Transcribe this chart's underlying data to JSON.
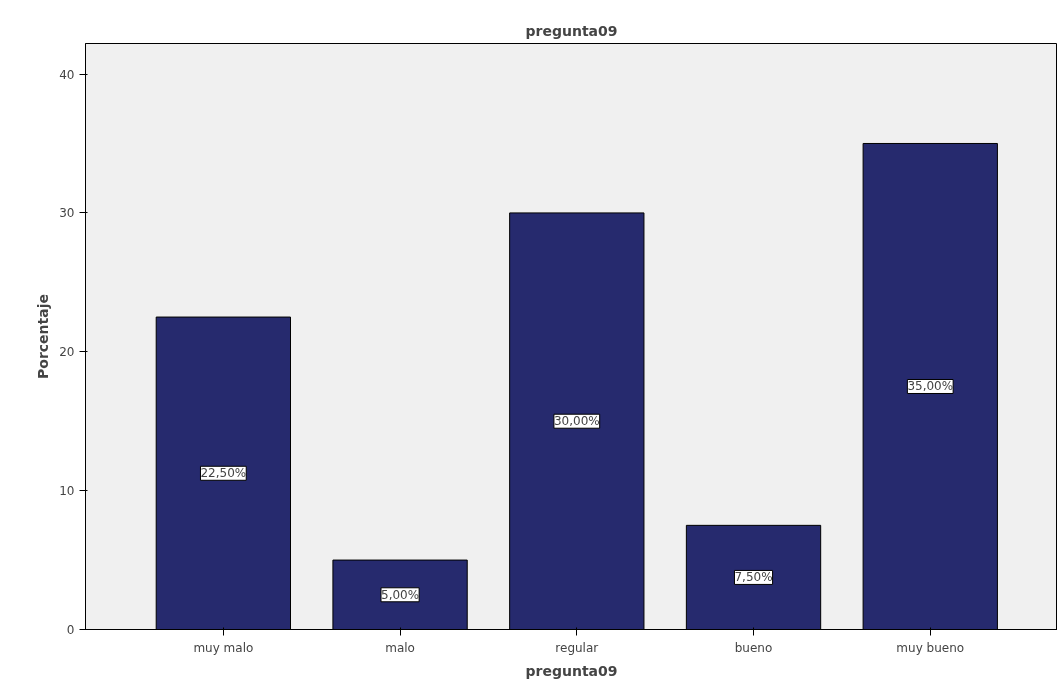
{
  "chart_data": {
    "type": "bar",
    "title": "pregunta09",
    "xlabel": "pregunta09",
    "ylabel": "Porcentaje",
    "categories": [
      "muy malo",
      "malo",
      "regular",
      "bueno",
      "muy bueno"
    ],
    "values": [
      22.5,
      5,
      30,
      7.5,
      35
    ],
    "value_labels": [
      "22,50%",
      "5,00%",
      "30,00%",
      "7,50%",
      "35,00%"
    ],
    "color": "#262a6e",
    "ylim": [
      0,
      42.2
    ],
    "yticks": [
      0,
      10,
      20,
      30,
      40
    ],
    "grid": false
  }
}
